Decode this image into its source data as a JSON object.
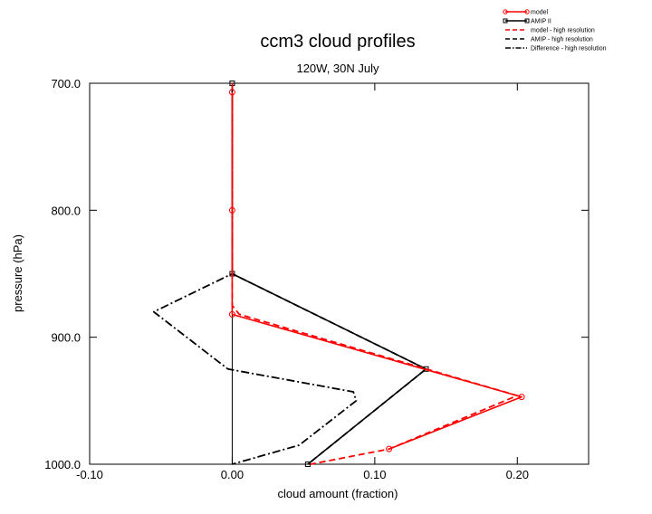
{
  "chart_data": {
    "type": "line",
    "title": "ccm3 cloud profiles",
    "subtitle": "120W, 30N July",
    "xlabel": "cloud amount (fraction)",
    "ylabel": "pressure (hPa)",
    "xlim": [
      -0.1,
      0.25
    ],
    "ylim": [
      700,
      1000
    ],
    "y_inverted": true,
    "x_ticks": [
      -0.1,
      0.0,
      0.1,
      0.2
    ],
    "x_tick_labels": [
      "-0.10",
      "0.00",
      "0.10",
      "0.20"
    ],
    "y_ticks": [
      700,
      800,
      900,
      1000
    ],
    "y_tick_labels": [
      "700.0",
      "800.0",
      "900.0",
      "1000.0"
    ],
    "legend_position": "top-right",
    "zero_line": true,
    "series": [
      {
        "name": "model",
        "color": "#ff0000",
        "style": "solid",
        "marker": "circle",
        "points": [
          {
            "x": 0.0,
            "p": 707
          },
          {
            "x": 0.0,
            "p": 800
          },
          {
            "x": 0.0,
            "p": 882
          },
          {
            "x": 0.203,
            "p": 947
          },
          {
            "x": 0.11,
            "p": 988
          }
        ]
      },
      {
        "name": "AMIP II",
        "color": "#000000",
        "style": "solid",
        "marker": "square",
        "points": [
          {
            "x": 0.0,
            "p": 700
          },
          {
            "x": 0.0,
            "p": 850
          },
          {
            "x": 0.136,
            "p": 925
          },
          {
            "x": 0.053,
            "p": 1000
          }
        ]
      },
      {
        "name": "model - high resolution",
        "color": "#ff0000",
        "style": "dashed",
        "marker": "none",
        "points": [
          {
            "x": 0.0,
            "p": 700
          },
          {
            "x": 0.0,
            "p": 875
          },
          {
            "x": 0.005,
            "p": 882
          },
          {
            "x": 0.2,
            "p": 946
          },
          {
            "x": 0.11,
            "p": 988
          },
          {
            "x": 0.055,
            "p": 1000
          }
        ]
      },
      {
        "name": "AMIP - high resolution",
        "color": "#000000",
        "style": "dashed",
        "marker": "none",
        "points": [
          {
            "x": 0.0,
            "p": 700
          },
          {
            "x": 0.0,
            "p": 850
          },
          {
            "x": 0.136,
            "p": 925
          },
          {
            "x": 0.053,
            "p": 1000
          }
        ]
      },
      {
        "name": "Difference - high resolution",
        "color": "#000000",
        "style": "dashdot",
        "marker": "none",
        "points": [
          {
            "x": 0.0,
            "p": 700
          },
          {
            "x": 0.0,
            "p": 850
          },
          {
            "x": -0.055,
            "p": 880
          },
          {
            "x": -0.003,
            "p": 925
          },
          {
            "x": 0.085,
            "p": 943
          },
          {
            "x": 0.087,
            "p": 950
          },
          {
            "x": 0.047,
            "p": 985
          },
          {
            "x": 0.0,
            "p": 1000
          }
        ]
      }
    ]
  }
}
